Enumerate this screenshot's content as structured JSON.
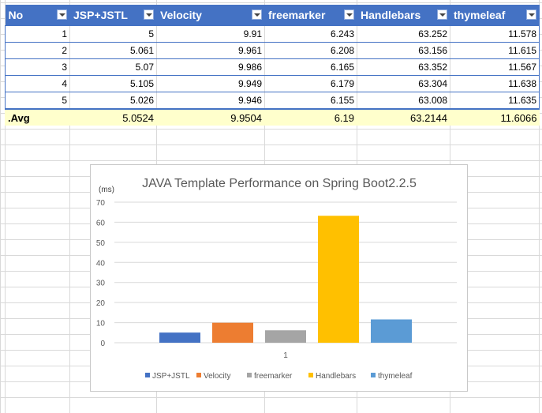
{
  "table": {
    "headers": [
      "No",
      "JSP+JSTL",
      "Velocity",
      "freemarker",
      "Handlebars",
      "thymeleaf"
    ],
    "rows": [
      [
        "1",
        "5",
        "9.91",
        "6.243",
        "63.252",
        "11.578"
      ],
      [
        "2",
        "5.061",
        "9.961",
        "6.208",
        "63.156",
        "11.615"
      ],
      [
        "3",
        "5.07",
        "9.986",
        "6.165",
        "63.352",
        "11.567"
      ],
      [
        "4",
        "5.105",
        "9.949",
        "6.179",
        "63.304",
        "11.638"
      ],
      [
        "5",
        "5.026",
        "9.946",
        "6.155",
        "63.008",
        "11.635"
      ]
    ],
    "avg": [
      ".Avg",
      "5.0524",
      "9.9504",
      "6.19",
      "63.2144",
      "11.6066"
    ]
  },
  "colors": {
    "header_bg": "#4472c4",
    "avg_bg": "#ffffcc"
  },
  "chart_data": {
    "type": "bar",
    "title": "JAVA Template Performance on Spring Boot2.2.5",
    "ylabel": "(ms)",
    "xlabel": "",
    "categories": [
      "1"
    ],
    "ylim": [
      0,
      70
    ],
    "yticks": [
      "0",
      "10",
      "20",
      "30",
      "40",
      "50",
      "60",
      "70"
    ],
    "grid": true,
    "legend_position": "bottom",
    "series": [
      {
        "name": "JSP+JSTL",
        "values": [
          5.0524
        ],
        "color": "#4472c4"
      },
      {
        "name": "Velocity",
        "values": [
          9.9504
        ],
        "color": "#ed7d31"
      },
      {
        "name": "freemarker",
        "values": [
          6.19
        ],
        "color": "#a5a5a5"
      },
      {
        "name": "Handlebars",
        "values": [
          63.2144
        ],
        "color": "#ffc000"
      },
      {
        "name": "thymeleaf",
        "values": [
          11.6066
        ],
        "color": "#5b9bd5"
      }
    ]
  }
}
